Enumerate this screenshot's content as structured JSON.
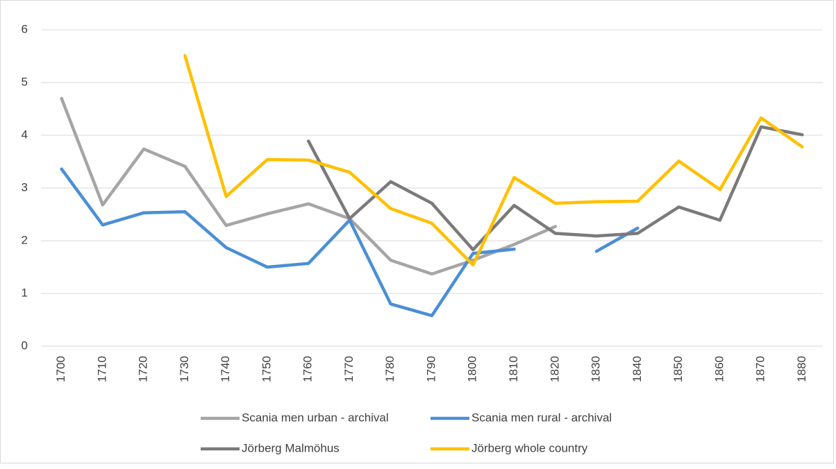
{
  "chart_data": {
    "type": "line",
    "categories": [
      "1700",
      "1710",
      "1720",
      "1730",
      "1740",
      "1750",
      "1760",
      "1770",
      "1780",
      "1790",
      "1800",
      "1810",
      "1820",
      "1830",
      "1840",
      "1850",
      "1860",
      "1870",
      "1880"
    ],
    "series": [
      {
        "name": "Scania men urban - archival",
        "color": "#a5a5a5",
        "values": [
          4.7,
          2.68,
          3.74,
          3.41,
          2.29,
          2.51,
          2.7,
          2.42,
          1.63,
          1.37,
          1.63,
          1.93,
          2.27,
          null,
          null,
          null,
          null,
          null,
          null
        ]
      },
      {
        "name": "Scania men rural  - archival",
        "color": "#4a8fd6",
        "values": [
          3.36,
          2.3,
          2.53,
          2.55,
          1.87,
          1.5,
          1.57,
          2.39,
          0.8,
          0.58,
          1.76,
          1.84,
          null,
          1.8,
          2.24,
          null,
          null,
          null,
          null
        ]
      },
      {
        "name": "Jörberg Malmöhus",
        "color": "#7a7a7a",
        "values": [
          null,
          null,
          null,
          null,
          null,
          null,
          3.89,
          2.42,
          3.12,
          2.71,
          1.83,
          2.67,
          2.14,
          2.09,
          2.14,
          2.64,
          2.39,
          4.16,
          4.01
        ]
      },
      {
        "name": "Jörberg whole country",
        "color": "#ffc000",
        "values": [
          null,
          null,
          null,
          5.51,
          2.84,
          3.54,
          3.53,
          3.3,
          2.61,
          2.33,
          1.54,
          3.2,
          2.71,
          2.74,
          2.75,
          3.51,
          2.97,
          4.33,
          3.78
        ]
      }
    ],
    "ylim": [
      0,
      6
    ],
    "yticks": [
      0,
      1,
      2,
      3,
      4,
      5,
      6
    ],
    "grid": true,
    "legend": "bottom"
  }
}
